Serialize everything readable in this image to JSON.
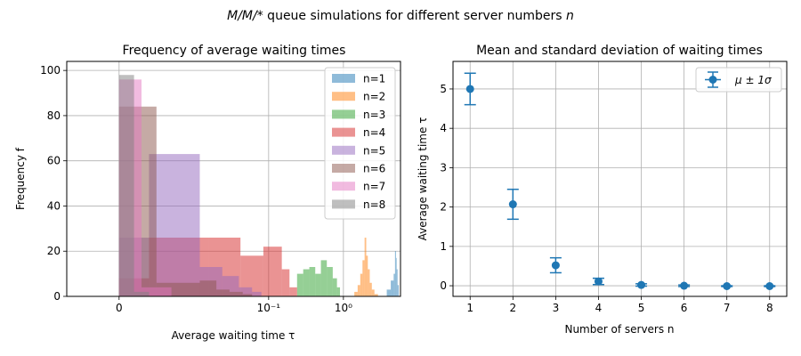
{
  "figure": {
    "suptitle_math": "M/M/*",
    "suptitle_text": " queue simulations for different server numbers ",
    "suptitle_var": "n"
  },
  "chart_data": [
    {
      "type": "histogram",
      "title": "Frequency of average waiting times",
      "xlabel": "Average waiting time τ",
      "ylabel": "Frequency f",
      "xscale": "symlog",
      "xlim": [
        -0.007,
        5.8
      ],
      "ylim": [
        0,
        104
      ],
      "xticks": [
        {
          "value": 0,
          "label": "0"
        },
        {
          "value": 0.1,
          "label": "10⁻¹"
        },
        {
          "value": 1,
          "label": "10⁰"
        }
      ],
      "yticks": [
        0,
        20,
        40,
        60,
        80,
        100
      ],
      "grid": true,
      "legend_position": "upper right",
      "series": [
        {
          "name": "n=1",
          "color": "#1f77b4",
          "bins": [
            [
              3.8,
              4.3,
              3
            ],
            [
              4.3,
              4.7,
              7
            ],
            [
              4.7,
              4.9,
              10
            ],
            [
              4.9,
              5.05,
              20
            ],
            [
              5.05,
              5.15,
              17
            ],
            [
              5.15,
              5.3,
              12
            ],
            [
              5.3,
              5.5,
              5
            ]
          ]
        },
        {
          "name": "n=2",
          "color": "#ff7f0e",
          "bins": [
            [
              1.4,
              1.55,
              2
            ],
            [
              1.55,
              1.68,
              5
            ],
            [
              1.68,
              1.8,
              10
            ],
            [
              1.8,
              1.92,
              16
            ],
            [
              1.92,
              2.02,
              26
            ],
            [
              2.02,
              2.12,
              18
            ],
            [
              2.12,
              2.25,
              12
            ],
            [
              2.25,
              2.4,
              6
            ],
            [
              2.4,
              2.6,
              3
            ],
            [
              2.6,
              2.9,
              1
            ]
          ]
        },
        {
          "name": "n=3",
          "color": "#2ca02c",
          "bins": [
            [
              0.24,
              0.29,
              10
            ],
            [
              0.29,
              0.35,
              12
            ],
            [
              0.35,
              0.42,
              13
            ],
            [
              0.42,
              0.5,
              10
            ],
            [
              0.5,
              0.6,
              16
            ],
            [
              0.6,
              0.72,
              13
            ],
            [
              0.72,
              0.82,
              8
            ],
            [
              0.82,
              0.9,
              4
            ]
          ]
        },
        {
          "name": "n=4",
          "color": "#d62728",
          "bins": [
            [
              0.0,
              0.004,
              8
            ],
            [
              0.004,
              0.016,
              26
            ],
            [
              0.016,
              0.042,
              26
            ],
            [
              0.042,
              0.085,
              18
            ],
            [
              0.085,
              0.15,
              22
            ],
            [
              0.15,
              0.19,
              12
            ],
            [
              0.19,
              0.24,
              4
            ]
          ]
        },
        {
          "name": "n=5",
          "color": "#9467bd",
          "bins": [
            [
              0.0,
              0.004,
              26
            ],
            [
              0.004,
              0.012,
              63
            ],
            [
              0.012,
              0.024,
              13
            ],
            [
              0.024,
              0.04,
              9
            ],
            [
              0.04,
              0.06,
              4
            ],
            [
              0.06,
              0.08,
              2
            ]
          ]
        },
        {
          "name": "n=6",
          "color": "#8c564b",
          "bins": [
            [
              0.0,
              0.005,
              84
            ],
            [
              0.005,
              0.012,
              6
            ],
            [
              0.012,
              0.02,
              7
            ],
            [
              0.02,
              0.03,
              3
            ],
            [
              0.03,
              0.045,
              2
            ],
            [
              0.045,
              0.06,
              1
            ]
          ]
        },
        {
          "name": "n=7",
          "color": "#e377c2",
          "bins": [
            [
              0.0,
              0.003,
              96
            ],
            [
              0.003,
              0.007,
              4
            ]
          ]
        },
        {
          "name": "n=8",
          "color": "#7f7f7f",
          "bins": [
            [
              0.0,
              0.002,
              98
            ],
            [
              0.002,
              0.004,
              2
            ]
          ]
        }
      ]
    },
    {
      "type": "errorbar",
      "title": "Mean and standard deviation of waiting times",
      "xlabel": "Number of servers n",
      "ylabel": "Average waiting time τ",
      "xlim": [
        0.6,
        8.4
      ],
      "ylim": [
        -0.27,
        5.7
      ],
      "xticks": [
        1,
        2,
        3,
        4,
        5,
        6,
        7,
        8
      ],
      "yticks": [
        0,
        1,
        2,
        3,
        4,
        5
      ],
      "grid": true,
      "legend_position": "upper right",
      "legend_label": "μ ± 1σ",
      "color": "#1f77b4",
      "x": [
        1,
        2,
        3,
        4,
        5,
        6,
        7,
        8
      ],
      "y": [
        5.0,
        2.07,
        0.52,
        0.11,
        0.02,
        0.0,
        -0.01,
        -0.01
      ],
      "yerr": [
        0.4,
        0.38,
        0.19,
        0.08,
        0.03,
        0.02,
        0.01,
        0.01
      ]
    }
  ]
}
